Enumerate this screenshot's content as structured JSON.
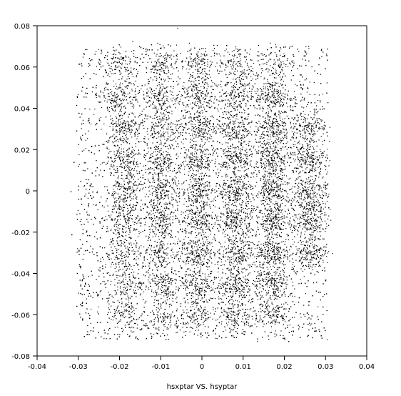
{
  "chart_data": {
    "type": "scatter",
    "xlabel": "hsxptar VS. hsyptar",
    "ylabel": "",
    "xlim": [
      -0.04,
      0.04
    ],
    "ylim": [
      -0.08,
      0.08
    ],
    "x_ticks": [
      "-0.04",
      "-0.03",
      "-0.02",
      "-0.01",
      "0",
      "0.01",
      "0.02",
      "0.03",
      "0.04"
    ],
    "y_ticks": [
      "0.08",
      "0.06",
      "0.04",
      "0.02",
      "0",
      "-0.02",
      "-0.04",
      "-0.06",
      "-0.08"
    ],
    "x_tick_values": [
      -0.04,
      -0.03,
      -0.02,
      -0.01,
      0,
      0.01,
      0.02,
      0.03,
      0.04
    ],
    "y_tick_values": [
      0.08,
      0.06,
      0.04,
      0.02,
      0,
      -0.02,
      -0.04,
      -0.06,
      -0.08
    ],
    "background_x_range": [
      -0.0305,
      0.0305
    ],
    "background_y_range": [
      -0.072,
      0.071
    ],
    "background_point_count": 6500,
    "point_color": "#000000",
    "clusters": [
      {
        "x": -0.02,
        "y": 0.061,
        "density": 0.4
      },
      {
        "x": -0.01,
        "y": 0.061,
        "density": 0.45
      },
      {
        "x": -0.001,
        "y": 0.061,
        "density": 0.5
      },
      {
        "x": 0.008,
        "y": 0.061,
        "density": 0.5
      },
      {
        "x": 0.017,
        "y": 0.061,
        "density": 0.4
      },
      {
        "x": -0.02,
        "y": 0.046,
        "density": 0.6
      },
      {
        "x": -0.01,
        "y": 0.046,
        "density": 0.7
      },
      {
        "x": -0.001,
        "y": 0.046,
        "density": 0.7
      },
      {
        "x": 0.008,
        "y": 0.046,
        "density": 0.7
      },
      {
        "x": 0.017,
        "y": 0.046,
        "density": 0.85
      },
      {
        "x": -0.019,
        "y": 0.031,
        "density": 0.7
      },
      {
        "x": -0.01,
        "y": 0.031,
        "density": 0.7
      },
      {
        "x": -0.001,
        "y": 0.031,
        "density": 0.85
      },
      {
        "x": 0.008,
        "y": 0.031,
        "density": 0.9
      },
      {
        "x": 0.017,
        "y": 0.031,
        "density": 0.95
      },
      {
        "x": 0.026,
        "y": 0.03,
        "density": 0.7
      },
      {
        "x": -0.019,
        "y": 0.015,
        "density": 0.75
      },
      {
        "x": -0.01,
        "y": 0.015,
        "density": 0.8
      },
      {
        "x": -0.001,
        "y": 0.015,
        "density": 0.8
      },
      {
        "x": 0.008,
        "y": 0.015,
        "density": 0.9
      },
      {
        "x": 0.017,
        "y": 0.016,
        "density": 1.0
      },
      {
        "x": 0.026,
        "y": 0.016,
        "density": 0.9
      },
      {
        "x": -0.019,
        "y": 0.0,
        "density": 0.7
      },
      {
        "x": -0.01,
        "y": 0.0,
        "density": 0.8
      },
      {
        "x": -0.001,
        "y": 0.0,
        "density": 0.8
      },
      {
        "x": 0.008,
        "y": 0.0,
        "density": 1.0
      },
      {
        "x": 0.017,
        "y": 0.0,
        "density": 1.0
      },
      {
        "x": 0.026,
        "y": 0.0,
        "density": 0.9
      },
      {
        "x": -0.019,
        "y": -0.014,
        "density": 0.7
      },
      {
        "x": -0.01,
        "y": -0.014,
        "density": 0.8
      },
      {
        "x": -0.001,
        "y": -0.014,
        "density": 0.85
      },
      {
        "x": 0.008,
        "y": -0.014,
        "density": 0.95
      },
      {
        "x": 0.017,
        "y": -0.014,
        "density": 1.0
      },
      {
        "x": 0.026,
        "y": -0.014,
        "density": 0.9
      },
      {
        "x": -0.019,
        "y": -0.03,
        "density": 0.55
      },
      {
        "x": -0.01,
        "y": -0.03,
        "density": 0.65
      },
      {
        "x": -0.001,
        "y": -0.03,
        "density": 0.75
      },
      {
        "x": 0.008,
        "y": -0.03,
        "density": 0.9
      },
      {
        "x": 0.017,
        "y": -0.03,
        "density": 0.95
      },
      {
        "x": 0.026,
        "y": -0.03,
        "density": 0.8
      },
      {
        "x": -0.019,
        "y": -0.045,
        "density": 0.5
      },
      {
        "x": -0.01,
        "y": -0.045,
        "density": 0.65
      },
      {
        "x": -0.001,
        "y": -0.045,
        "density": 0.8
      },
      {
        "x": 0.008,
        "y": -0.045,
        "density": 0.85
      },
      {
        "x": 0.017,
        "y": -0.045,
        "density": 0.9
      },
      {
        "x": -0.019,
        "y": -0.06,
        "density": 0.4
      },
      {
        "x": -0.01,
        "y": -0.06,
        "density": 0.45
      },
      {
        "x": -0.001,
        "y": -0.06,
        "density": 0.6
      },
      {
        "x": 0.008,
        "y": -0.06,
        "density": 0.6
      },
      {
        "x": 0.017,
        "y": -0.06,
        "density": 0.55
      }
    ],
    "points_per_cluster": 220,
    "cluster_sigma": [
      0.0021,
      0.0042
    ]
  }
}
